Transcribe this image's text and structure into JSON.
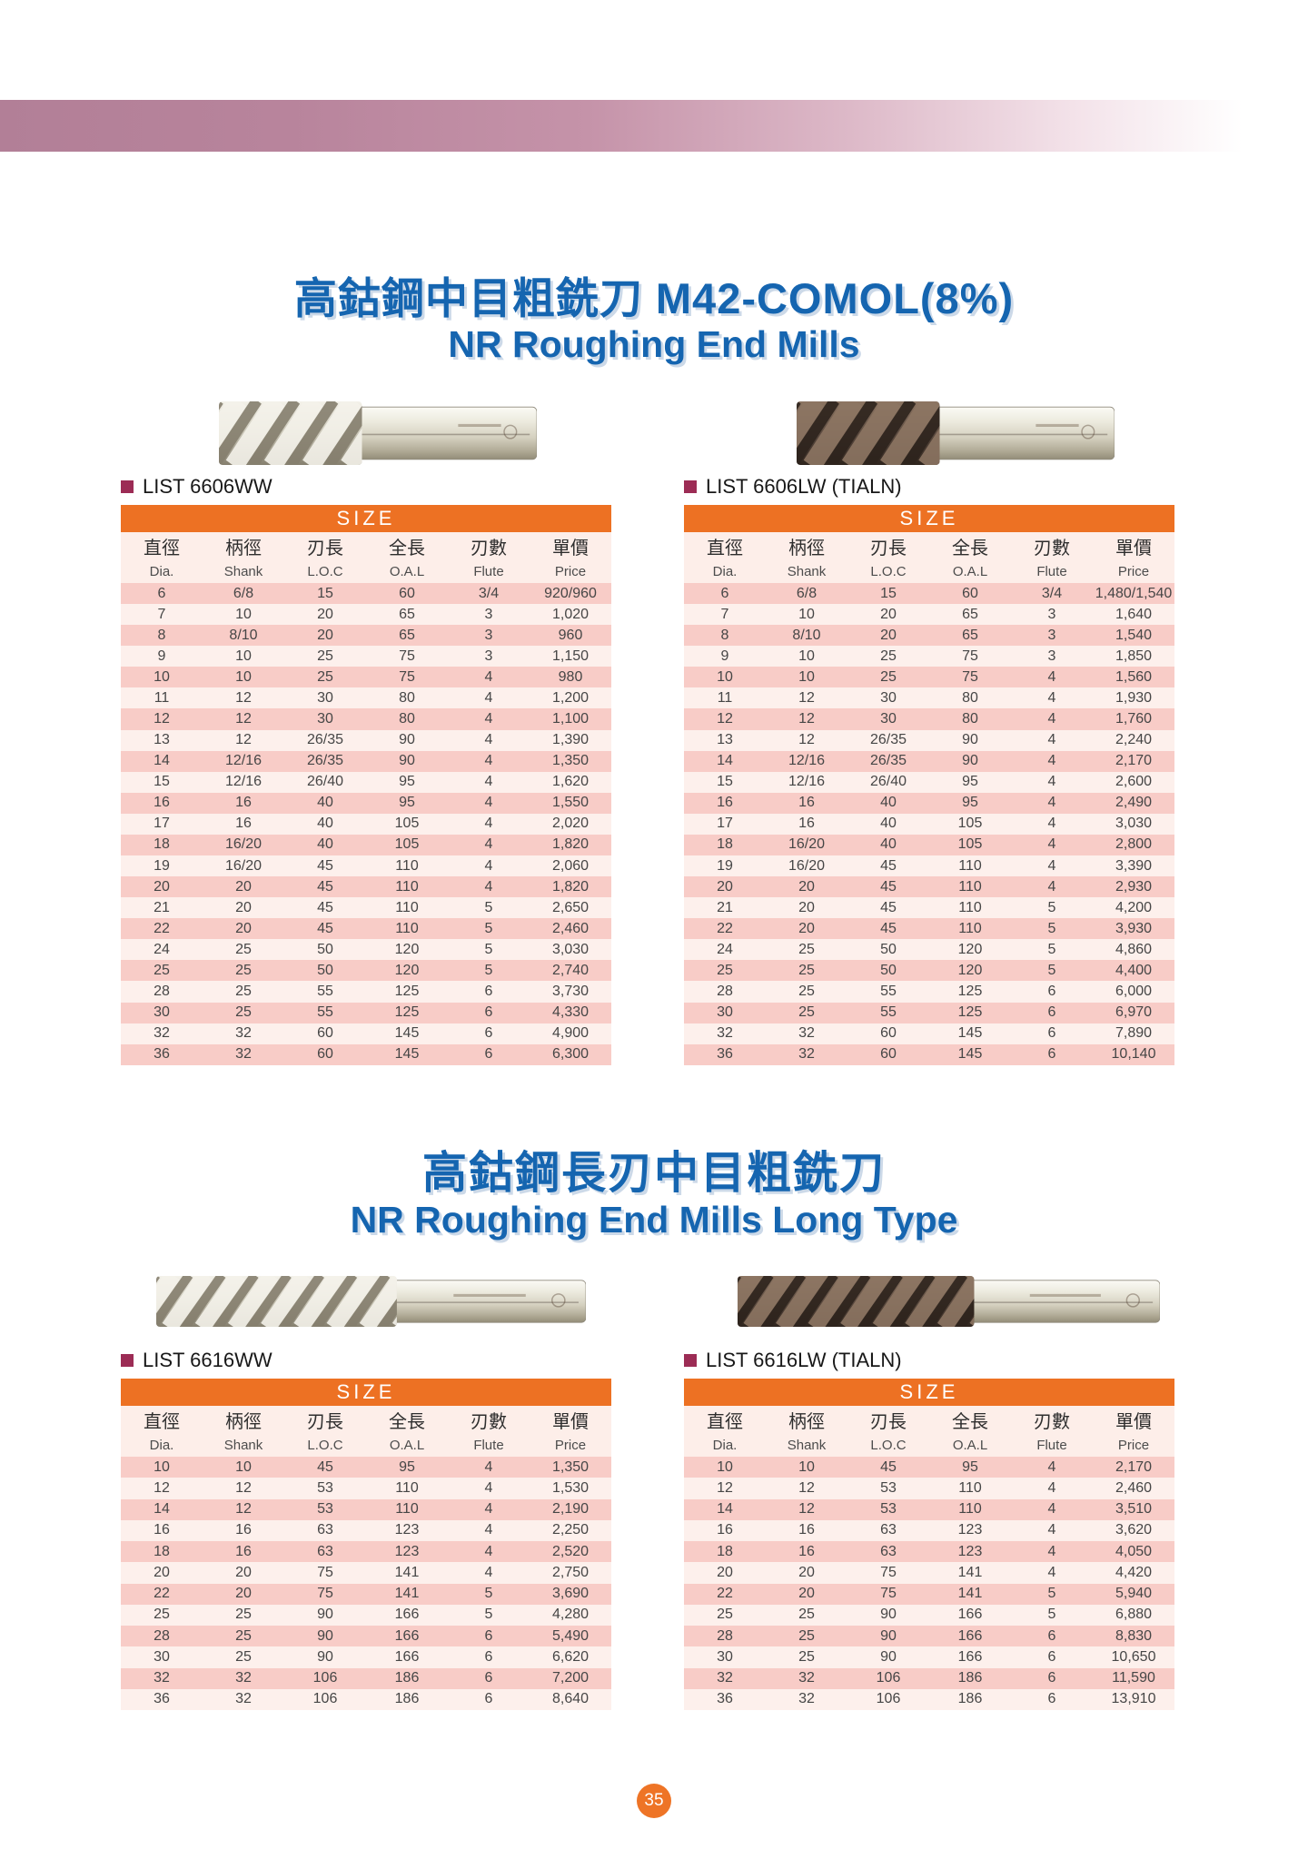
{
  "page": {
    "page_number": "35"
  },
  "colors": {
    "accent_orange": "#ed7123",
    "row_pink": "#f8ccc7",
    "row_pale": "#fdf0ec",
    "title_blue": "#1565b0",
    "bullet_maroon": "#9c2c55",
    "banner_mauve": "#b27f97"
  },
  "sections": [
    {
      "title_zh": "高鈷鋼中目粗銑刀 M42-COMOL(8%)",
      "title_en": "NR Roughing End Mills",
      "tables": [
        {
          "list_label": "LIST 6606WW",
          "size_header": "SIZE",
          "columns_zh": [
            "直徑",
            "柄徑",
            "刃長",
            "全長",
            "刃數",
            "單價"
          ],
          "columns_en": [
            "Dia.",
            "Shank",
            "L.O.C",
            "O.A.L",
            "Flute",
            "Price"
          ],
          "rows": [
            [
              "6",
              "6/8",
              "15",
              "60",
              "3/4",
              "920/960"
            ],
            [
              "7",
              "10",
              "20",
              "65",
              "3",
              "1,020"
            ],
            [
              "8",
              "8/10",
              "20",
              "65",
              "3",
              "960"
            ],
            [
              "9",
              "10",
              "25",
              "75",
              "3",
              "1,150"
            ],
            [
              "10",
              "10",
              "25",
              "75",
              "4",
              "980"
            ],
            [
              "11",
              "12",
              "30",
              "80",
              "4",
              "1,200"
            ],
            [
              "12",
              "12",
              "30",
              "80",
              "4",
              "1,100"
            ],
            [
              "13",
              "12",
              "26/35",
              "90",
              "4",
              "1,390"
            ],
            [
              "14",
              "12/16",
              "26/35",
              "90",
              "4",
              "1,350"
            ],
            [
              "15",
              "12/16",
              "26/40",
              "95",
              "4",
              "1,620"
            ],
            [
              "16",
              "16",
              "40",
              "95",
              "4",
              "1,550"
            ],
            [
              "17",
              "16",
              "40",
              "105",
              "4",
              "2,020"
            ],
            [
              "18",
              "16/20",
              "40",
              "105",
              "4",
              "1,820"
            ],
            [
              "19",
              "16/20",
              "45",
              "110",
              "4",
              "2,060"
            ],
            [
              "20",
              "20",
              "45",
              "110",
              "4",
              "1,820"
            ],
            [
              "21",
              "20",
              "45",
              "110",
              "5",
              "2,650"
            ],
            [
              "22",
              "20",
              "45",
              "110",
              "5",
              "2,460"
            ],
            [
              "24",
              "25",
              "50",
              "120",
              "5",
              "3,030"
            ],
            [
              "25",
              "25",
              "50",
              "120",
              "5",
              "2,740"
            ],
            [
              "28",
              "25",
              "55",
              "125",
              "6",
              "3,730"
            ],
            [
              "30",
              "25",
              "55",
              "125",
              "6",
              "4,330"
            ],
            [
              "32",
              "32",
              "60",
              "145",
              "6",
              "4,900"
            ],
            [
              "36",
              "32",
              "60",
              "145",
              "6",
              "6,300"
            ]
          ]
        },
        {
          "list_label": "LIST 6606LW (TIALN)",
          "size_header": "SIZE",
          "columns_zh": [
            "直徑",
            "柄徑",
            "刃長",
            "全長",
            "刃數",
            "單價"
          ],
          "columns_en": [
            "Dia.",
            "Shank",
            "L.O.C",
            "O.A.L",
            "Flute",
            "Price"
          ],
          "rows": [
            [
              "6",
              "6/8",
              "15",
              "60",
              "3/4",
              "1,480/1,540"
            ],
            [
              "7",
              "10",
              "20",
              "65",
              "3",
              "1,640"
            ],
            [
              "8",
              "8/10",
              "20",
              "65",
              "3",
              "1,540"
            ],
            [
              "9",
              "10",
              "25",
              "75",
              "3",
              "1,850"
            ],
            [
              "10",
              "10",
              "25",
              "75",
              "4",
              "1,560"
            ],
            [
              "11",
              "12",
              "30",
              "80",
              "4",
              "1,930"
            ],
            [
              "12",
              "12",
              "30",
              "80",
              "4",
              "1,760"
            ],
            [
              "13",
              "12",
              "26/35",
              "90",
              "4",
              "2,240"
            ],
            [
              "14",
              "12/16",
              "26/35",
              "90",
              "4",
              "2,170"
            ],
            [
              "15",
              "12/16",
              "26/40",
              "95",
              "4",
              "2,600"
            ],
            [
              "16",
              "16",
              "40",
              "95",
              "4",
              "2,490"
            ],
            [
              "17",
              "16",
              "40",
              "105",
              "4",
              "3,030"
            ],
            [
              "18",
              "16/20",
              "40",
              "105",
              "4",
              "2,800"
            ],
            [
              "19",
              "16/20",
              "45",
              "110",
              "4",
              "3,390"
            ],
            [
              "20",
              "20",
              "45",
              "110",
              "4",
              "2,930"
            ],
            [
              "21",
              "20",
              "45",
              "110",
              "5",
              "4,200"
            ],
            [
              "22",
              "20",
              "45",
              "110",
              "5",
              "3,930"
            ],
            [
              "24",
              "25",
              "50",
              "120",
              "5",
              "4,860"
            ],
            [
              "25",
              "25",
              "50",
              "120",
              "5",
              "4,400"
            ],
            [
              "28",
              "25",
              "55",
              "125",
              "6",
              "6,000"
            ],
            [
              "30",
              "25",
              "55",
              "125",
              "6",
              "6,970"
            ],
            [
              "32",
              "32",
              "60",
              "145",
              "6",
              "7,890"
            ],
            [
              "36",
              "32",
              "60",
              "145",
              "6",
              "10,140"
            ]
          ]
        }
      ]
    },
    {
      "title_zh": "高鈷鋼長刃中目粗銑刀",
      "title_en": "NR Roughing End Mills Long Type",
      "tables": [
        {
          "list_label": "LIST 6616WW",
          "size_header": "SIZE",
          "columns_zh": [
            "直徑",
            "柄徑",
            "刃長",
            "全長",
            "刃數",
            "單價"
          ],
          "columns_en": [
            "Dia.",
            "Shank",
            "L.O.C",
            "O.A.L",
            "Flute",
            "Price"
          ],
          "rows": [
            [
              "10",
              "10",
              "45",
              "95",
              "4",
              "1,350"
            ],
            [
              "12",
              "12",
              "53",
              "110",
              "4",
              "1,530"
            ],
            [
              "14",
              "12",
              "53",
              "110",
              "4",
              "2,190"
            ],
            [
              "16",
              "16",
              "63",
              "123",
              "4",
              "2,250"
            ],
            [
              "18",
              "16",
              "63",
              "123",
              "4",
              "2,520"
            ],
            [
              "20",
              "20",
              "75",
              "141",
              "4",
              "2,750"
            ],
            [
              "22",
              "20",
              "75",
              "141",
              "5",
              "3,690"
            ],
            [
              "25",
              "25",
              "90",
              "166",
              "5",
              "4,280"
            ],
            [
              "28",
              "25",
              "90",
              "166",
              "6",
              "5,490"
            ],
            [
              "30",
              "25",
              "90",
              "166",
              "6",
              "6,620"
            ],
            [
              "32",
              "32",
              "106",
              "186",
              "6",
              "7,200"
            ],
            [
              "36",
              "32",
              "106",
              "186",
              "6",
              "8,640"
            ]
          ]
        },
        {
          "list_label": "LIST 6616LW (TIALN)",
          "size_header": "SIZE",
          "columns_zh": [
            "直徑",
            "柄徑",
            "刃長",
            "全長",
            "刃數",
            "單價"
          ],
          "columns_en": [
            "Dia.",
            "Shank",
            "L.O.C",
            "O.A.L",
            "Flute",
            "Price"
          ],
          "rows": [
            [
              "10",
              "10",
              "45",
              "95",
              "4",
              "2,170"
            ],
            [
              "12",
              "12",
              "53",
              "110",
              "4",
              "2,460"
            ],
            [
              "14",
              "12",
              "53",
              "110",
              "4",
              "3,510"
            ],
            [
              "16",
              "16",
              "63",
              "123",
              "4",
              "3,620"
            ],
            [
              "18",
              "16",
              "63",
              "123",
              "4",
              "4,050"
            ],
            [
              "20",
              "20",
              "75",
              "141",
              "4",
              "4,420"
            ],
            [
              "22",
              "20",
              "75",
              "141",
              "5",
              "5,940"
            ],
            [
              "25",
              "25",
              "90",
              "166",
              "5",
              "6,880"
            ],
            [
              "28",
              "25",
              "90",
              "166",
              "6",
              "8,830"
            ],
            [
              "30",
              "25",
              "90",
              "166",
              "6",
              "10,650"
            ],
            [
              "32",
              "32",
              "106",
              "186",
              "6",
              "11,590"
            ],
            [
              "36",
              "32",
              "106",
              "186",
              "6",
              "13,910"
            ]
          ]
        }
      ]
    }
  ]
}
